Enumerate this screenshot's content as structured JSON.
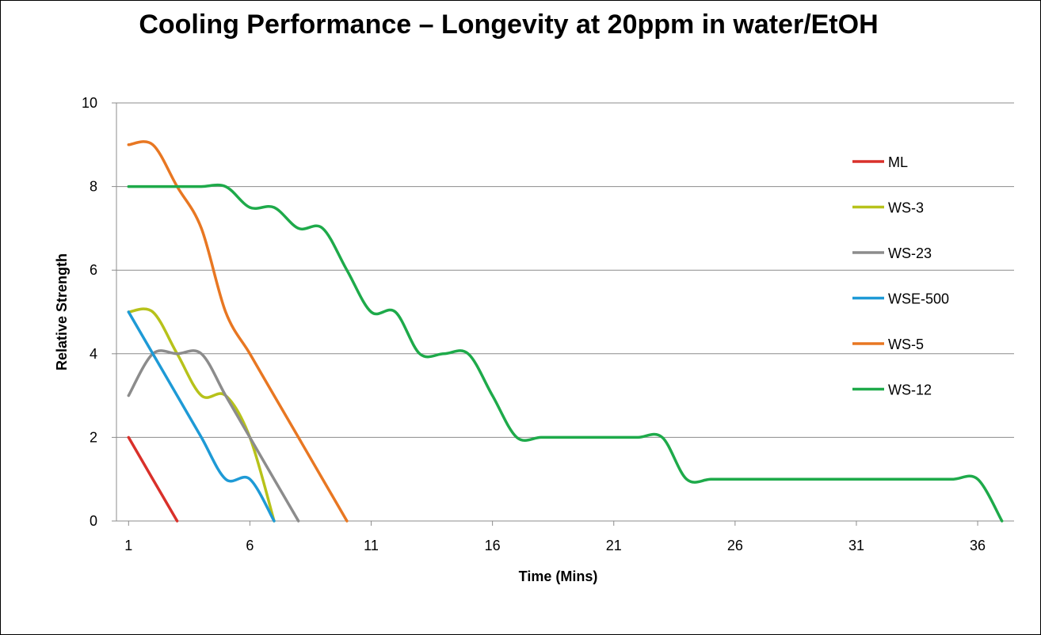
{
  "chart_data": {
    "type": "line",
    "title": "Cooling Performance – Longevity at 20ppm in water/EtOH",
    "xlabel": "Time (Mins)",
    "ylabel": "Relative Strength",
    "xlim": [
      1,
      37
    ],
    "ylim": [
      0,
      10
    ],
    "x_ticks": [
      1,
      6,
      11,
      16,
      21,
      26,
      31,
      36
    ],
    "y_ticks": [
      0,
      2,
      4,
      6,
      8,
      10
    ],
    "grid": "horizontal",
    "legend_position": "right",
    "series": [
      {
        "name": "ML",
        "color": "#D9302A",
        "x": [
          1,
          2,
          3
        ],
        "y": [
          2,
          1,
          0
        ]
      },
      {
        "name": "WS-3",
        "color": "#B7C21A",
        "x": [
          1,
          2,
          3,
          4,
          5,
          6,
          7
        ],
        "y": [
          5,
          5,
          4,
          3,
          3,
          2,
          0
        ]
      },
      {
        "name": "WS-23",
        "color": "#8C8C8C",
        "x": [
          1,
          2,
          3,
          4,
          5,
          6,
          7,
          8
        ],
        "y": [
          3,
          4,
          4,
          4,
          3,
          2,
          1,
          0
        ]
      },
      {
        "name": "WSE-500",
        "color": "#1E9AD6",
        "x": [
          1,
          2,
          3,
          4,
          5,
          6,
          7
        ],
        "y": [
          5,
          4,
          3,
          2,
          1,
          1,
          0
        ]
      },
      {
        "name": "WS-5",
        "color": "#E87722",
        "x": [
          1,
          2,
          3,
          4,
          5,
          6,
          7,
          8,
          9,
          10
        ],
        "y": [
          9,
          9,
          8,
          7,
          5,
          4,
          3,
          2,
          1,
          0
        ]
      },
      {
        "name": "WS-12",
        "color": "#1EAA4A",
        "x": [
          1,
          2,
          3,
          4,
          5,
          6,
          7,
          8,
          9,
          10,
          11,
          12,
          13,
          14,
          15,
          16,
          17,
          18,
          19,
          20,
          21,
          22,
          23,
          24,
          25,
          26,
          27,
          28,
          29,
          30,
          31,
          32,
          33,
          34,
          35,
          36,
          37
        ],
        "y": [
          8,
          8,
          8,
          8,
          8,
          7.5,
          7.5,
          7,
          7,
          6,
          5,
          5,
          4,
          4,
          4,
          3,
          2,
          2,
          2,
          2,
          2,
          2,
          2,
          1,
          1,
          1,
          1,
          1,
          1,
          1,
          1,
          1,
          1,
          1,
          1,
          1,
          0
        ]
      }
    ]
  }
}
